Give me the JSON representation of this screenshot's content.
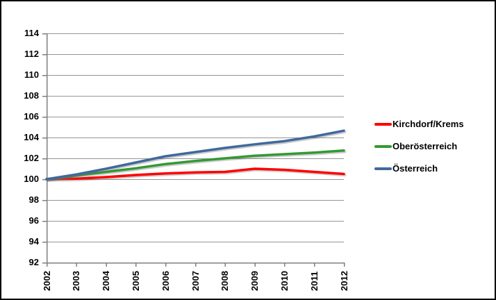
{
  "chart_data": {
    "type": "line",
    "title": "",
    "categories": [
      "2002",
      "2003",
      "2004",
      "2005",
      "2006",
      "2007",
      "2008",
      "2009",
      "2010",
      "2011",
      "2012"
    ],
    "series": [
      {
        "name": "Kirchdorf/Krems",
        "color": "#ff0000",
        "values": [
          100.0,
          100.05,
          100.2,
          100.4,
          100.55,
          100.65,
          100.7,
          101.0,
          100.9,
          100.7,
          100.5
        ]
      },
      {
        "name": "Oberösterreich",
        "color": "#339933",
        "values": [
          100.0,
          100.35,
          100.7,
          101.05,
          101.45,
          101.75,
          102.0,
          102.25,
          102.4,
          102.55,
          102.75
        ]
      },
      {
        "name": "Österreich",
        "color": "#40699c",
        "values": [
          100.0,
          100.45,
          101.0,
          101.6,
          102.2,
          102.6,
          103.0,
          103.35,
          103.65,
          104.1,
          104.65
        ]
      }
    ],
    "xlabel": "",
    "ylabel": "",
    "ylim": [
      92,
      114
    ],
    "ytick_step": 2,
    "yticks": [
      "114",
      "112",
      "110",
      "108",
      "106",
      "104",
      "102",
      "100",
      "98",
      "96",
      "94",
      "92"
    ],
    "grid": "horizontal-only",
    "legend_position": "right-middle",
    "axis_color": "#7f7f7f",
    "gridline_color": "#949494"
  },
  "legend": {
    "items": [
      {
        "label": "Kirchdorf/Krems",
        "color": "#ff0000"
      },
      {
        "label": "Oberösterreich",
        "color": "#339933"
      },
      {
        "label": "Österreich",
        "color": "#40699c"
      }
    ]
  }
}
